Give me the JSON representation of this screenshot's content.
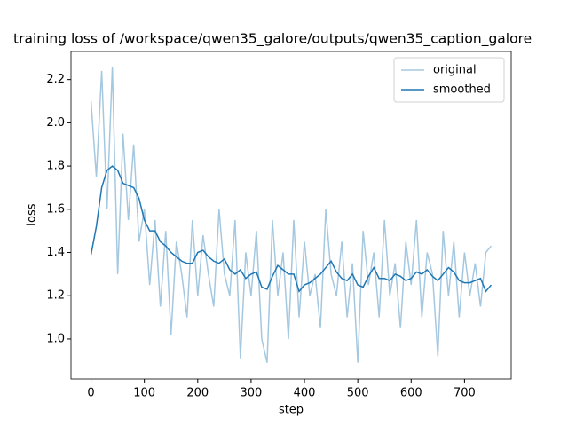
{
  "chart_data": {
    "type": "line",
    "title": "training loss of /workspace/qwen35_galore/outputs/qwen35_caption_galore",
    "x_label": "step",
    "y_label": "loss",
    "x": [
      0,
      10,
      20,
      30,
      40,
      50,
      60,
      70,
      80,
      90,
      100,
      110,
      120,
      130,
      140,
      150,
      160,
      170,
      180,
      190,
      200,
      210,
      220,
      230,
      240,
      250,
      260,
      270,
      280,
      290,
      300,
      310,
      320,
      330,
      340,
      350,
      360,
      370,
      380,
      390,
      400,
      410,
      420,
      430,
      440,
      450,
      460,
      470,
      480,
      490,
      500,
      510,
      520,
      530,
      540,
      550,
      560,
      570,
      580,
      590,
      600,
      610,
      620,
      630,
      640,
      650,
      660,
      670,
      680,
      690,
      700,
      710,
      720,
      730,
      740,
      750
    ],
    "series": [
      {
        "name": "original",
        "color": "#a5c8e1",
        "values": [
          2.1,
          1.75,
          2.24,
          1.6,
          2.26,
          1.3,
          1.95,
          1.55,
          1.9,
          1.45,
          1.6,
          1.25,
          1.55,
          1.15,
          1.5,
          1.02,
          1.45,
          1.3,
          1.1,
          1.55,
          1.2,
          1.48,
          1.3,
          1.15,
          1.6,
          1.3,
          1.2,
          1.55,
          0.91,
          1.4,
          1.2,
          1.5,
          1.0,
          0.89,
          1.55,
          1.2,
          1.4,
          1.0,
          1.55,
          1.1,
          1.45,
          1.2,
          1.3,
          1.05,
          1.6,
          1.3,
          1.2,
          1.45,
          1.1,
          1.35,
          0.89,
          1.5,
          1.25,
          1.4,
          1.1,
          1.55,
          1.2,
          1.35,
          1.05,
          1.45,
          1.25,
          1.55,
          1.1,
          1.4,
          1.3,
          0.92,
          1.5,
          1.2,
          1.45,
          1.1,
          1.4,
          1.2,
          1.35,
          1.15,
          1.4,
          1.43
        ]
      },
      {
        "name": "smoothed",
        "color": "#1f77b4",
        "values": [
          1.39,
          1.52,
          1.7,
          1.78,
          1.8,
          1.78,
          1.72,
          1.71,
          1.7,
          1.65,
          1.55,
          1.5,
          1.5,
          1.45,
          1.43,
          1.4,
          1.38,
          1.36,
          1.35,
          1.35,
          1.4,
          1.41,
          1.38,
          1.36,
          1.35,
          1.37,
          1.32,
          1.3,
          1.32,
          1.28,
          1.3,
          1.31,
          1.24,
          1.23,
          1.29,
          1.34,
          1.32,
          1.3,
          1.3,
          1.22,
          1.25,
          1.26,
          1.28,
          1.3,
          1.33,
          1.36,
          1.31,
          1.28,
          1.27,
          1.3,
          1.25,
          1.24,
          1.29,
          1.33,
          1.28,
          1.28,
          1.27,
          1.3,
          1.29,
          1.27,
          1.28,
          1.31,
          1.3,
          1.32,
          1.29,
          1.27,
          1.3,
          1.33,
          1.31,
          1.27,
          1.26,
          1.26,
          1.27,
          1.28,
          1.22,
          1.25
        ]
      }
    ],
    "xlim": [
      -37.5,
      787.5
    ],
    "xticks": [
      0,
      100,
      200,
      300,
      400,
      500,
      600,
      700
    ],
    "ylim": [
      0.815,
      2.33
    ],
    "yticks": [
      {
        "value": 1,
        "label": "1.0"
      },
      1.2,
      1.4,
      1.6,
      1.8,
      {
        "value": 2,
        "label": "2.0"
      },
      2.2
    ],
    "legend": "upper right"
  }
}
